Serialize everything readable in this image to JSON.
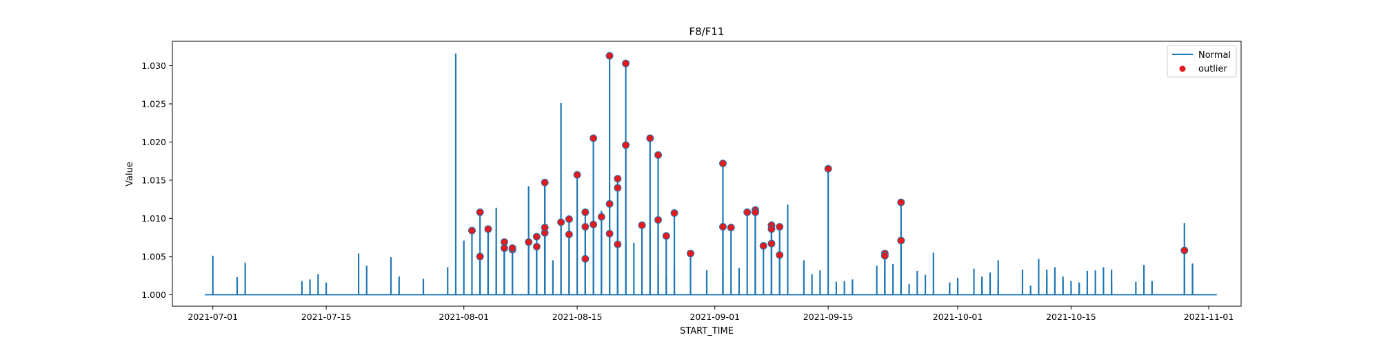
{
  "chart_data": {
    "type": "line",
    "title": "F8/F11",
    "xlabel": "START_TIME",
    "ylabel": "Value",
    "xlim": [
      "2021-06-26",
      "2021-11-05"
    ],
    "ylim": [
      0.9985,
      1.0332
    ],
    "x_ticks": [
      "2021-07-01",
      "2021-07-15",
      "2021-08-01",
      "2021-08-15",
      "2021-09-01",
      "2021-09-15",
      "2021-10-01",
      "2021-10-15",
      "2021-11-01"
    ],
    "y_ticks": [
      1.0,
      1.005,
      1.01,
      1.015,
      1.02,
      1.025,
      1.03
    ],
    "y_tick_labels": [
      "1.000",
      "1.005",
      "1.010",
      "1.015",
      "1.020",
      "1.025",
      "1.030"
    ],
    "baseline": 1.0,
    "series": [
      {
        "name": "Normal",
        "type": "spikes",
        "color": "#1f77b4",
        "points": [
          [
            "2021-07-01",
            1.0051
          ],
          [
            "2021-07-04",
            1.0023
          ],
          [
            "2021-07-05",
            1.0042
          ],
          [
            "2021-07-12",
            1.0018
          ],
          [
            "2021-07-13",
            1.002
          ],
          [
            "2021-07-14",
            1.0027
          ],
          [
            "2021-07-15",
            1.0016
          ],
          [
            "2021-07-19",
            1.0054
          ],
          [
            "2021-07-20",
            1.0038
          ],
          [
            "2021-07-23",
            1.0049
          ],
          [
            "2021-07-24",
            1.0024
          ],
          [
            "2021-07-27",
            1.0021
          ],
          [
            "2021-07-30",
            1.0036
          ],
          [
            "2021-07-31",
            1.0316
          ],
          [
            "2021-08-01",
            1.0071
          ],
          [
            "2021-08-03",
            1.0048
          ],
          [
            "2021-08-04",
            1.0087
          ],
          [
            "2021-08-05",
            1.0114
          ],
          [
            "2021-08-05",
            1.0059
          ],
          [
            "2021-08-06",
            1.0062
          ],
          [
            "2021-08-09",
            1.0142
          ],
          [
            "2021-08-10",
            1.0065
          ],
          [
            "2021-08-11",
            1.0146
          ],
          [
            "2021-08-12",
            1.0045
          ],
          [
            "2021-08-13",
            1.0251
          ],
          [
            "2021-08-17",
            1.0102
          ],
          [
            "2021-08-18",
            1.0079
          ],
          [
            "2021-08-18",
            1.011
          ],
          [
            "2021-08-20",
            1.0098
          ],
          [
            "2021-08-21",
            1.0066
          ],
          [
            "2021-08-22",
            1.0068
          ],
          [
            "2021-08-24",
            1.0085
          ],
          [
            "2021-08-25",
            1.0036
          ],
          [
            "2021-08-26",
            1.0026
          ],
          [
            "2021-08-27",
            1.0037
          ],
          [
            "2021-08-31",
            1.0032
          ],
          [
            "2021-09-02",
            1.0028
          ],
          [
            "2021-09-04",
            1.0035
          ],
          [
            "2021-09-06",
            1.0061
          ],
          [
            "2021-09-08",
            1.009
          ],
          [
            "2021-09-10",
            1.0118
          ],
          [
            "2021-09-12",
            1.0045
          ],
          [
            "2021-09-13",
            1.0027
          ],
          [
            "2021-09-14",
            1.0032
          ],
          [
            "2021-09-16",
            1.0017
          ],
          [
            "2021-09-17",
            1.0018
          ],
          [
            "2021-09-18",
            1.002
          ],
          [
            "2021-09-18",
            1.0017
          ],
          [
            "2021-09-21",
            1.0038
          ],
          [
            "2021-09-22",
            1.0027
          ],
          [
            "2021-09-22",
            1.002
          ],
          [
            "2021-09-23",
            1.004
          ],
          [
            "2021-09-24",
            1.0019
          ],
          [
            "2021-09-25",
            1.0014
          ],
          [
            "2021-09-26",
            1.0031
          ],
          [
            "2021-09-27",
            1.0026
          ],
          [
            "2021-09-28",
            1.0055
          ],
          [
            "2021-09-30",
            1.0016
          ],
          [
            "2021-09-30",
            1.0015
          ],
          [
            "2021-10-01",
            1.0022
          ],
          [
            "2021-10-03",
            1.0034
          ],
          [
            "2021-10-04",
            1.0021
          ],
          [
            "2021-10-04",
            1.0024
          ],
          [
            "2021-10-05",
            1.0029
          ],
          [
            "2021-10-05",
            1.0019
          ],
          [
            "2021-10-06",
            1.0045
          ],
          [
            "2021-10-06",
            1.002
          ],
          [
            "2021-10-09",
            1.0033
          ],
          [
            "2021-10-10",
            1.0012
          ],
          [
            "2021-10-11",
            1.0047
          ],
          [
            "2021-10-12",
            1.0033
          ],
          [
            "2021-10-12",
            1.0023
          ],
          [
            "2021-10-13",
            1.0019
          ],
          [
            "2021-10-13",
            1.0036
          ],
          [
            "2021-10-14",
            1.0019
          ],
          [
            "2021-10-14",
            1.0024
          ],
          [
            "2021-10-15",
            1.0018
          ],
          [
            "2021-10-16",
            1.0016
          ],
          [
            "2021-10-16",
            1.0015
          ],
          [
            "2021-10-17",
            1.0031
          ],
          [
            "2021-10-18",
            1.0032
          ],
          [
            "2021-10-19",
            1.0036
          ],
          [
            "2021-10-20",
            1.0017
          ],
          [
            "2021-10-20",
            1.0033
          ],
          [
            "2021-10-23",
            1.0017
          ],
          [
            "2021-10-24",
            1.0039
          ],
          [
            "2021-10-25",
            1.0018
          ],
          [
            "2021-10-29",
            1.0094
          ],
          [
            "2021-10-30",
            1.0041
          ],
          [
            "2021-10-30",
            1.0036
          ]
        ]
      },
      {
        "name": "outlier",
        "type": "scatter",
        "color": "#e41a1c",
        "edge_color": "#1f77b4",
        "points": [
          [
            "2021-08-02",
            1.0084
          ],
          [
            "2021-08-03",
            1.0108
          ],
          [
            "2021-08-03",
            1.005
          ],
          [
            "2021-08-04",
            1.0086
          ],
          [
            "2021-08-06",
            1.0069
          ],
          [
            "2021-08-06",
            1.0061
          ],
          [
            "2021-08-07",
            1.0059
          ],
          [
            "2021-08-07",
            1.0061
          ],
          [
            "2021-08-09",
            1.0069
          ],
          [
            "2021-08-10",
            1.0063
          ],
          [
            "2021-08-10",
            1.0076
          ],
          [
            "2021-08-11",
            1.0081
          ],
          [
            "2021-08-11",
            1.0088
          ],
          [
            "2021-08-11",
            1.0147
          ],
          [
            "2021-08-13",
            1.0095
          ],
          [
            "2021-08-14",
            1.0079
          ],
          [
            "2021-08-14",
            1.0099
          ],
          [
            "2021-08-15",
            1.0157
          ],
          [
            "2021-08-16",
            1.0047
          ],
          [
            "2021-08-16",
            1.0108
          ],
          [
            "2021-08-16",
            1.0089
          ],
          [
            "2021-08-17",
            1.0205
          ],
          [
            "2021-08-17",
            1.0092
          ],
          [
            "2021-08-18",
            1.0102
          ],
          [
            "2021-08-19",
            1.0313
          ],
          [
            "2021-08-19",
            1.0119
          ],
          [
            "2021-08-19",
            1.008
          ],
          [
            "2021-08-20",
            1.014
          ],
          [
            "2021-08-20",
            1.0152
          ],
          [
            "2021-08-20",
            1.0066
          ],
          [
            "2021-08-21",
            1.0303
          ],
          [
            "2021-08-21",
            1.0196
          ],
          [
            "2021-08-23",
            1.0091
          ],
          [
            "2021-08-24",
            1.0205
          ],
          [
            "2021-08-25",
            1.0183
          ],
          [
            "2021-08-25",
            1.0098
          ],
          [
            "2021-08-26",
            1.0077
          ],
          [
            "2021-08-27",
            1.0107
          ],
          [
            "2021-08-29",
            1.0054
          ],
          [
            "2021-09-02",
            1.0172
          ],
          [
            "2021-09-02",
            1.0089
          ],
          [
            "2021-09-03",
            1.0088
          ],
          [
            "2021-09-05",
            1.0108
          ],
          [
            "2021-09-06",
            1.0111
          ],
          [
            "2021-09-06",
            1.0108
          ],
          [
            "2021-09-07",
            1.0064
          ],
          [
            "2021-09-08",
            1.0091
          ],
          [
            "2021-09-08",
            1.0086
          ],
          [
            "2021-09-08",
            1.0067
          ],
          [
            "2021-09-09",
            1.0089
          ],
          [
            "2021-09-09",
            1.0052
          ],
          [
            "2021-09-15",
            1.0165
          ],
          [
            "2021-09-22",
            1.0054
          ],
          [
            "2021-09-22",
            1.0051
          ],
          [
            "2021-09-24",
            1.0121
          ],
          [
            "2021-09-24",
            1.0071
          ],
          [
            "2021-10-29",
            1.0058
          ]
        ]
      }
    ],
    "legend": {
      "placement": "top-right",
      "entries": [
        {
          "label": "Normal",
          "marker": "line",
          "color": "#1f77b4"
        },
        {
          "label": "outlier",
          "marker": "dot",
          "color": "#e41a1c"
        }
      ]
    },
    "grid": false
  }
}
